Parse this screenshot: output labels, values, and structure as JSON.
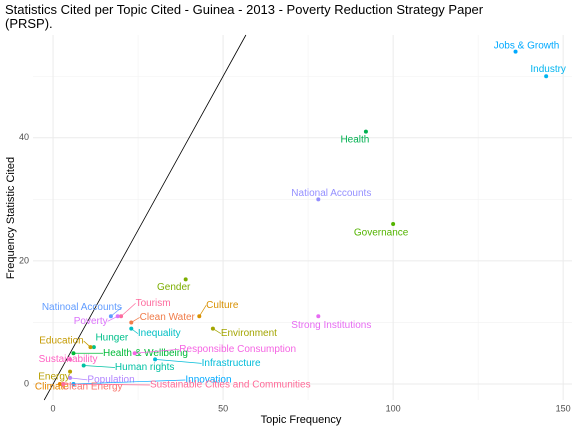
{
  "chart_data": {
    "type": "scatter",
    "title": "Statistics Cited per Topic Cited - Guinea - 2013 - Poverty Reduction Strategy Paper (PRSP).",
    "x_label": "Topic Frequency",
    "y_label": "Frequency Statistic Cited",
    "xlim": [
      -5.9,
      152.6
    ],
    "xticks": [
      0,
      50,
      100,
      150
    ],
    "xminorticks": [
      25,
      75,
      125
    ],
    "ylim": [
      -2.6,
      56.7
    ],
    "yticks": [
      0,
      20,
      40
    ],
    "yminorticks": [
      10,
      30,
      50
    ],
    "grid": true,
    "reference_line": {
      "slope": 1,
      "intercept": 0,
      "color": "#000000"
    },
    "points": [
      {
        "label": "Jobs & Growth",
        "x": 136,
        "y": 54,
        "color": "#00a9ff"
      },
      {
        "label": "Industry",
        "x": 145,
        "y": 50,
        "color": "#00b4ef"
      },
      {
        "label": "Health",
        "x": 92,
        "y": 41,
        "color": "#00b050"
      },
      {
        "label": "National Accounts",
        "x": 78,
        "y": 30,
        "color": "#9590ff"
      },
      {
        "label": "Governance",
        "x": 100,
        "y": 26,
        "color": "#53b400"
      },
      {
        "label": "Strong Institutions",
        "x": 78,
        "y": 11,
        "color": "#e76bf3"
      },
      {
        "label": "Gender",
        "x": 39,
        "y": 17,
        "color": "#7cae00"
      },
      {
        "label": "Culture",
        "x": 43,
        "y": 11,
        "color": "#d89000"
      },
      {
        "label": "Environment",
        "x": 47,
        "y": 9,
        "color": "#a3a500"
      },
      {
        "label": "Tourism",
        "x": 20,
        "y": 11,
        "color": "#fd6c9e"
      },
      {
        "label": "Natinoal Accounts",
        "x": 17,
        "y": 11,
        "color": "#619cff"
      },
      {
        "label": "Poverty",
        "x": 19,
        "y": 11,
        "color": "#db72fb"
      },
      {
        "label": "Clean Water",
        "x": 23,
        "y": 10,
        "color": "#f07c4a"
      },
      {
        "label": "Inequality",
        "x": 23,
        "y": 9,
        "color": "#00bfc4"
      },
      {
        "label": "Hunger",
        "x": 12,
        "y": 6,
        "color": "#00c08b"
      },
      {
        "label": "Education",
        "x": 11,
        "y": 6,
        "color": "#c49a00"
      },
      {
        "label": "Health & Wellbeing",
        "x": 6,
        "y": 5,
        "color": "#00ba38"
      },
      {
        "label": "Sustainability",
        "x": 5,
        "y": 4,
        "color": "#ff61c3"
      },
      {
        "label": "Responsible Consumption",
        "x": 24,
        "y": 5,
        "color": "#f564e3"
      },
      {
        "label": "Infrastructure",
        "x": 30,
        "y": 4,
        "color": "#00bcd8"
      },
      {
        "label": "Human rights",
        "x": 9,
        "y": 3,
        "color": "#00c1a3"
      },
      {
        "label": "Energy",
        "x": 5,
        "y": 2,
        "color": "#b79f00"
      },
      {
        "label": "Population",
        "x": 5,
        "y": 1,
        "color": "#b385ff"
      },
      {
        "label": "Innovation",
        "x": 6,
        "y": 0,
        "color": "#00a9ff"
      },
      {
        "label": "Climate",
        "x": 2,
        "y": 0,
        "color": "#e58700"
      },
      {
        "label": "Clean Energy",
        "x": 3,
        "y": 0,
        "color": "#f8766d"
      },
      {
        "label": "Sustainable Cities and Communities",
        "x": 3,
        "y": 0,
        "color": "#ff6a98"
      }
    ]
  }
}
